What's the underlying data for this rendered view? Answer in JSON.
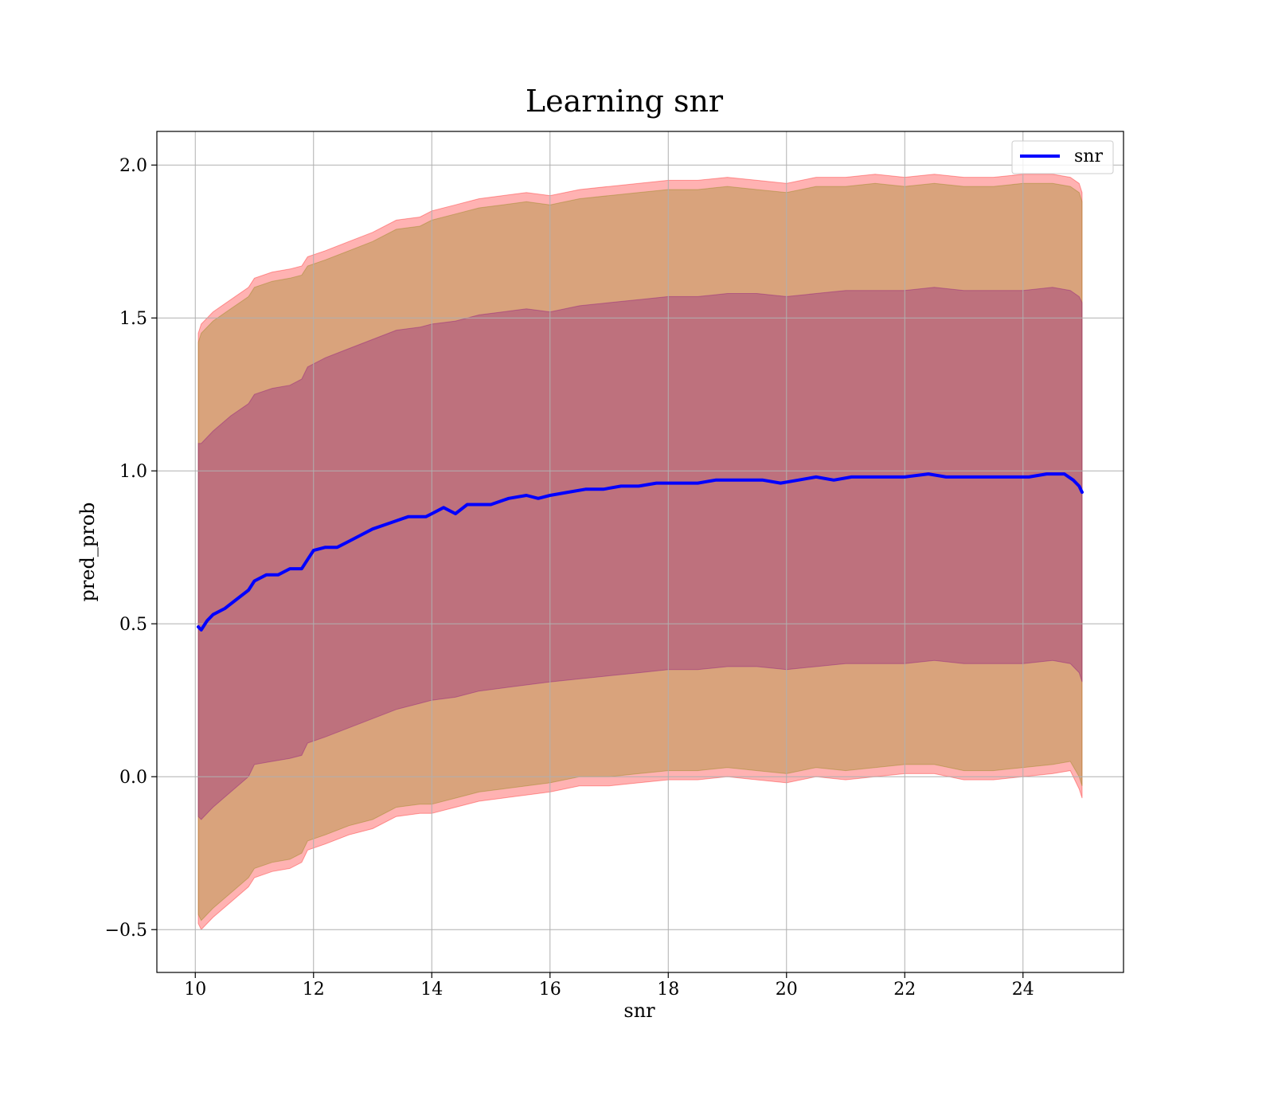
{
  "chart_data": {
    "type": "line",
    "title": "Learning snr",
    "xlabel": "snr",
    "ylabel": "pred_prob",
    "xlim": [
      9.35,
      25.7
    ],
    "ylim": [
      -0.64,
      2.11
    ],
    "xticks": [
      10,
      12,
      14,
      16,
      18,
      20,
      22,
      24
    ],
    "xtick_labels": [
      "10",
      "12",
      "14",
      "16",
      "18",
      "20",
      "22",
      "24"
    ],
    "yticks": [
      -0.5,
      0.0,
      0.5,
      1.0,
      1.5,
      2.0
    ],
    "ytick_labels": [
      "−0.5",
      "0.0",
      "0.5",
      "1.0",
      "1.5",
      "2.0"
    ],
    "grid": true,
    "legend_position": "top-right",
    "series": [
      {
        "name": "snr",
        "color": "#0000ff",
        "x": [
          10.05,
          10.1,
          10.2,
          10.3,
          10.5,
          10.7,
          10.9,
          11.0,
          11.2,
          11.4,
          11.6,
          11.8,
          11.9,
          12.0,
          12.2,
          12.4,
          12.6,
          12.8,
          13.0,
          13.3,
          13.6,
          13.9,
          14.0,
          14.2,
          14.4,
          14.6,
          14.8,
          15.0,
          15.3,
          15.6,
          15.8,
          16.0,
          16.3,
          16.6,
          16.9,
          17.2,
          17.5,
          17.8,
          18.1,
          18.5,
          18.8,
          19.2,
          19.6,
          19.9,
          20.2,
          20.5,
          20.8,
          21.1,
          21.4,
          21.7,
          22.0,
          22.4,
          22.7,
          23.0,
          23.4,
          23.8,
          24.1,
          24.4,
          24.7,
          24.85,
          24.95,
          25.0
        ],
        "y": [
          0.49,
          0.48,
          0.51,
          0.53,
          0.55,
          0.58,
          0.61,
          0.64,
          0.66,
          0.66,
          0.68,
          0.68,
          0.71,
          0.74,
          0.75,
          0.75,
          0.77,
          0.79,
          0.81,
          0.83,
          0.85,
          0.85,
          0.86,
          0.88,
          0.86,
          0.89,
          0.89,
          0.89,
          0.91,
          0.92,
          0.91,
          0.92,
          0.93,
          0.94,
          0.94,
          0.95,
          0.95,
          0.96,
          0.96,
          0.96,
          0.97,
          0.97,
          0.97,
          0.96,
          0.97,
          0.98,
          0.97,
          0.98,
          0.98,
          0.98,
          0.98,
          0.99,
          0.98,
          0.98,
          0.98,
          0.98,
          0.98,
          0.99,
          0.99,
          0.97,
          0.95,
          0.93
        ]
      }
    ],
    "bands": [
      {
        "color": "#ff0000",
        "opacity": 0.3,
        "x": [
          10.05,
          10.1,
          10.3,
          10.6,
          10.9,
          11.0,
          11.3,
          11.6,
          11.8,
          11.9,
          12.2,
          12.6,
          13.0,
          13.4,
          13.8,
          14.0,
          14.4,
          14.8,
          15.2,
          15.6,
          16.0,
          16.5,
          17.0,
          17.5,
          18.0,
          18.5,
          19.0,
          19.5,
          20.0,
          20.5,
          21.0,
          21.5,
          22.0,
          22.5,
          23.0,
          23.5,
          24.0,
          24.5,
          24.8,
          24.95,
          25.0
        ],
        "upper": [
          1.45,
          1.48,
          1.52,
          1.56,
          1.6,
          1.63,
          1.65,
          1.66,
          1.67,
          1.7,
          1.72,
          1.75,
          1.78,
          1.82,
          1.83,
          1.85,
          1.87,
          1.89,
          1.9,
          1.91,
          1.9,
          1.92,
          1.93,
          1.94,
          1.95,
          1.95,
          1.96,
          1.95,
          1.94,
          1.96,
          1.96,
          1.97,
          1.96,
          1.97,
          1.96,
          1.96,
          1.97,
          1.97,
          1.96,
          1.94,
          1.91
        ],
        "lower": [
          -0.48,
          -0.5,
          -0.46,
          -0.41,
          -0.36,
          -0.33,
          -0.31,
          -0.3,
          -0.28,
          -0.24,
          -0.22,
          -0.19,
          -0.17,
          -0.13,
          -0.12,
          -0.12,
          -0.1,
          -0.08,
          -0.07,
          -0.06,
          -0.05,
          -0.03,
          -0.03,
          -0.02,
          -0.01,
          -0.01,
          0.0,
          -0.01,
          -0.02,
          0.0,
          -0.01,
          0.0,
          0.01,
          0.01,
          -0.01,
          -0.01,
          0.0,
          0.01,
          0.02,
          -0.04,
          -0.07
        ]
      },
      {
        "color": "#808000",
        "opacity": 0.3,
        "x": [
          10.05,
          10.1,
          10.3,
          10.6,
          10.9,
          11.0,
          11.3,
          11.6,
          11.8,
          11.9,
          12.2,
          12.6,
          13.0,
          13.4,
          13.8,
          14.0,
          14.4,
          14.8,
          15.2,
          15.6,
          16.0,
          16.5,
          17.0,
          17.5,
          18.0,
          18.5,
          19.0,
          19.5,
          20.0,
          20.5,
          21.0,
          21.5,
          22.0,
          22.5,
          23.0,
          23.5,
          24.0,
          24.5,
          24.8,
          24.95,
          25.0
        ],
        "upper": [
          1.42,
          1.45,
          1.49,
          1.53,
          1.57,
          1.6,
          1.62,
          1.63,
          1.64,
          1.67,
          1.69,
          1.72,
          1.75,
          1.79,
          1.8,
          1.82,
          1.84,
          1.86,
          1.87,
          1.88,
          1.87,
          1.89,
          1.9,
          1.91,
          1.92,
          1.92,
          1.93,
          1.92,
          1.91,
          1.93,
          1.93,
          1.94,
          1.93,
          1.94,
          1.93,
          1.93,
          1.94,
          1.94,
          1.93,
          1.91,
          1.88
        ],
        "lower": [
          -0.45,
          -0.47,
          -0.43,
          -0.38,
          -0.33,
          -0.3,
          -0.28,
          -0.27,
          -0.25,
          -0.21,
          -0.19,
          -0.16,
          -0.14,
          -0.1,
          -0.09,
          -0.09,
          -0.07,
          -0.05,
          -0.04,
          -0.03,
          -0.02,
          0.0,
          0.0,
          0.01,
          0.02,
          0.02,
          0.03,
          0.02,
          0.01,
          0.03,
          0.02,
          0.03,
          0.04,
          0.04,
          0.02,
          0.02,
          0.03,
          0.04,
          0.05,
          0.0,
          -0.03
        ]
      },
      {
        "color": "#800080",
        "opacity": 0.3,
        "x": [
          10.05,
          10.1,
          10.3,
          10.6,
          10.9,
          11.0,
          11.3,
          11.6,
          11.8,
          11.9,
          12.2,
          12.6,
          13.0,
          13.4,
          13.8,
          14.0,
          14.4,
          14.8,
          15.2,
          15.6,
          16.0,
          16.5,
          17.0,
          17.5,
          18.0,
          18.5,
          19.0,
          19.5,
          20.0,
          20.5,
          21.0,
          21.5,
          22.0,
          22.5,
          23.0,
          23.5,
          24.0,
          24.5,
          24.8,
          24.95,
          25.0
        ],
        "upper": [
          1.09,
          1.09,
          1.13,
          1.18,
          1.22,
          1.25,
          1.27,
          1.28,
          1.3,
          1.34,
          1.37,
          1.4,
          1.43,
          1.46,
          1.47,
          1.48,
          1.49,
          1.51,
          1.52,
          1.53,
          1.52,
          1.54,
          1.55,
          1.56,
          1.57,
          1.57,
          1.58,
          1.58,
          1.57,
          1.58,
          1.59,
          1.59,
          1.59,
          1.6,
          1.59,
          1.59,
          1.59,
          1.6,
          1.59,
          1.57,
          1.55
        ],
        "lower": [
          -0.13,
          -0.14,
          -0.1,
          -0.05,
          0.0,
          0.04,
          0.05,
          0.06,
          0.07,
          0.11,
          0.13,
          0.16,
          0.19,
          0.22,
          0.24,
          0.25,
          0.26,
          0.28,
          0.29,
          0.3,
          0.31,
          0.32,
          0.33,
          0.34,
          0.35,
          0.35,
          0.36,
          0.36,
          0.35,
          0.36,
          0.37,
          0.37,
          0.37,
          0.38,
          0.37,
          0.37,
          0.37,
          0.38,
          0.37,
          0.34,
          0.31
        ]
      }
    ]
  }
}
